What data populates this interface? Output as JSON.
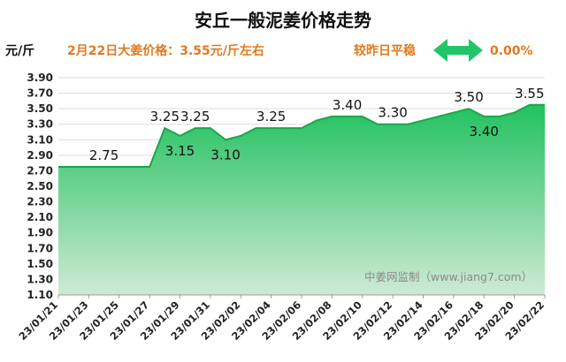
{
  "page": {
    "title": "安丘一般泥姜价格走势",
    "unit": "元/斤",
    "price_note": "2月22日大姜价格：3.55元/斤左右",
    "compare_label": "较昨日平稳",
    "compare_icon": "double-arrow-icon",
    "change_value": "0.00%",
    "watermark": "中姜网监制（www.jiang7.com）"
  },
  "colors": {
    "title": "#111111",
    "note": "#e07a1f",
    "arrow": "#22c46a",
    "line": "#1aa64a",
    "fill_top": "#22c15f",
    "fill_bottom": "#cfead6"
  },
  "chart_data": {
    "type": "area",
    "title": "安丘一般泥姜价格走势",
    "xlabel": "",
    "ylabel": "元/斤",
    "ylim": [
      1.1,
      3.9
    ],
    "yticks": [
      "3.90",
      "3.70",
      "3.50",
      "3.30",
      "3.10",
      "2.90",
      "2.70",
      "2.50",
      "2.30",
      "2.10",
      "1.90",
      "1.70",
      "1.50",
      "1.30",
      "1.10"
    ],
    "x_tick_labels": [
      "23/01/21",
      "23/01/23",
      "23/01/25",
      "23/01/27",
      "23/01/29",
      "23/01/31",
      "23/02/02",
      "23/02/04",
      "23/02/06",
      "23/02/08",
      "23/02/10",
      "23/02/12",
      "23/02/14",
      "23/02/16",
      "23/02/18",
      "23/02/20",
      "23/02/22"
    ],
    "x": [
      "23/01/21",
      "23/01/22",
      "23/01/23",
      "23/01/24",
      "23/01/25",
      "23/01/26",
      "23/01/27",
      "23/01/28",
      "23/01/29",
      "23/01/30",
      "23/01/31",
      "23/02/01",
      "23/02/02",
      "23/02/03",
      "23/02/04",
      "23/02/05",
      "23/02/06",
      "23/02/07",
      "23/02/08",
      "23/02/09",
      "23/02/10",
      "23/02/11",
      "23/02/12",
      "23/02/13",
      "23/02/14",
      "23/02/15",
      "23/02/16",
      "23/02/17",
      "23/02/18",
      "23/02/19",
      "23/02/20",
      "23/02/21",
      "23/02/22"
    ],
    "values": [
      2.75,
      2.75,
      2.75,
      2.75,
      2.75,
      2.75,
      2.75,
      3.25,
      3.15,
      3.25,
      3.25,
      3.1,
      3.15,
      3.25,
      3.25,
      3.25,
      3.25,
      3.35,
      3.4,
      3.4,
      3.4,
      3.3,
      3.3,
      3.3,
      3.35,
      3.4,
      3.45,
      3.5,
      3.4,
      3.4,
      3.45,
      3.55,
      3.55
    ],
    "data_labels": [
      {
        "x": "23/01/24",
        "y": 2.75,
        "text": "2.75"
      },
      {
        "x": "23/01/28",
        "y": 3.25,
        "text": "3.25"
      },
      {
        "x": "23/01/29",
        "y": 3.15,
        "text": "3.15"
      },
      {
        "x": "23/01/30",
        "y": 3.25,
        "text": "3.25"
      },
      {
        "x": "23/02/01",
        "y": 3.1,
        "text": "3.10"
      },
      {
        "x": "23/02/04",
        "y": 3.25,
        "text": "3.25"
      },
      {
        "x": "23/02/09",
        "y": 3.4,
        "text": "3.40"
      },
      {
        "x": "23/02/12",
        "y": 3.3,
        "text": "3.30"
      },
      {
        "x": "23/02/17",
        "y": 3.5,
        "text": "3.50"
      },
      {
        "x": "23/02/18",
        "y": 3.4,
        "text": "3.40"
      },
      {
        "x": "23/02/21",
        "y": 3.55,
        "text": "3.55"
      }
    ],
    "grid": true,
    "legend": "none"
  }
}
